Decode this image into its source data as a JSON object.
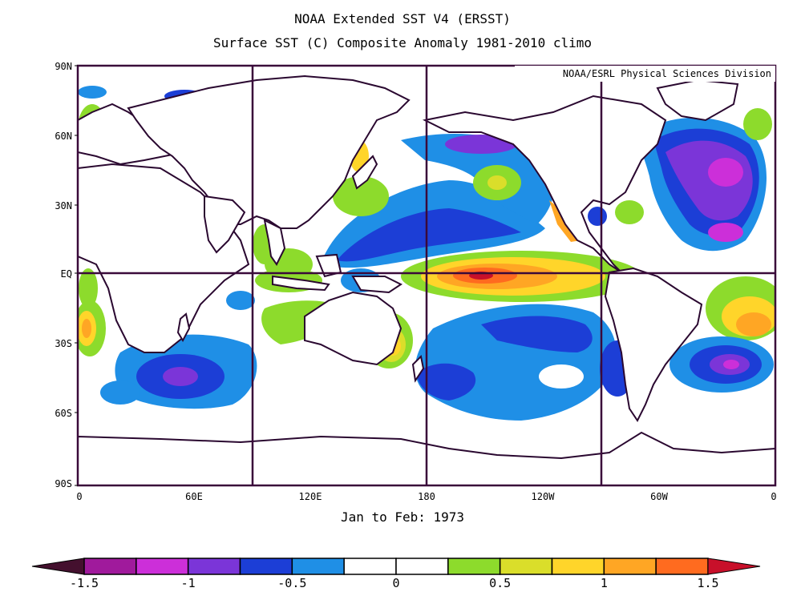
{
  "title": "NOAA Extended SST V4 (ERSST)",
  "subtitle": "Surface SST (C) Composite Anomaly 1981-2010 climo",
  "credit": "NOAA/ESRL Physical Sciences Division",
  "caption": "Jan to Feb: 1973",
  "lat_labels": [
    "90N",
    "60N",
    "30N",
    "EQ",
    "30S",
    "60S",
    "90S"
  ],
  "lon_labels": [
    "0",
    "60E",
    "120E",
    "180",
    "120W",
    "60W",
    "0"
  ],
  "colorbar": {
    "tick_labels": [
      "-1.5",
      "-1",
      "-0.5",
      "0",
      "0.5",
      "1",
      "1.5"
    ],
    "colors": [
      "#44102e",
      "#a01a9c",
      "#cc2fd9",
      "#7b35d8",
      "#1c3ed6",
      "#1f8fe6",
      "#ffffff",
      "#ffffff",
      "#8ddb2c",
      "#dade2a",
      "#ffd52a",
      "#ffa624",
      "#ff6b1f",
      "#c8102a"
    ],
    "values": [
      -1.75,
      -1.5,
      -1.25,
      -1.0,
      -0.75,
      -0.5,
      -0.25,
      0,
      0.25,
      0.5,
      0.75,
      1.0,
      1.25,
      1.5
    ]
  },
  "colors": {
    "frame": "#3a0a3a",
    "land": "#ffffff",
    "coast": "#2a0830"
  }
}
